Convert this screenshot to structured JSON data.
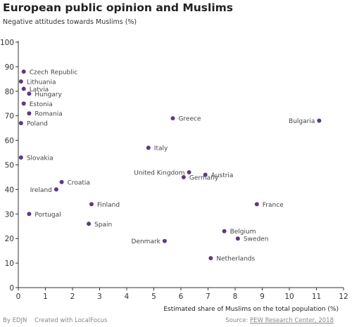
{
  "title": "European public opinion and Muslims",
  "subtitle": "Negative attitudes towards Muslims (%)",
  "footer": {
    "author": "By EDJN",
    "created_with": "Created with LocalFocus",
    "source_label": "Source:",
    "source_name": "PEW Research Center, 2018"
  },
  "colors": {
    "point": "#5b3a82",
    "axis": "#333333",
    "grid": "#e8e8e8"
  },
  "chart_data": {
    "type": "scatter",
    "title": "European public opinion and Muslims",
    "ylabel": "Negative attitudes towards Muslims (%)",
    "xlabel": "Estimated share of Muslims on the total population (%)",
    "xlim": [
      0,
      12
    ],
    "ylim": [
      0,
      100
    ],
    "xticks": [
      0,
      1,
      2,
      3,
      4,
      5,
      6,
      7,
      8,
      9,
      10,
      11,
      12
    ],
    "yticks": [
      0,
      10,
      20,
      30,
      40,
      50,
      60,
      70,
      80,
      90,
      100
    ],
    "grid": false,
    "points": [
      {
        "label": "Czech Republic",
        "x": 0.2,
        "y": 88,
        "side": "right"
      },
      {
        "label": "Lithuania",
        "x": 0.1,
        "y": 84,
        "side": "right"
      },
      {
        "label": "Latvia",
        "x": 0.2,
        "y": 81,
        "side": "right"
      },
      {
        "label": "Hungary",
        "x": 0.4,
        "y": 79,
        "side": "right"
      },
      {
        "label": "Estonia",
        "x": 0.2,
        "y": 75,
        "side": "right"
      },
      {
        "label": "Romania",
        "x": 0.4,
        "y": 71,
        "side": "right"
      },
      {
        "label": "Poland",
        "x": 0.1,
        "y": 67,
        "side": "right"
      },
      {
        "label": "Slovakia",
        "x": 0.1,
        "y": 53,
        "side": "right"
      },
      {
        "label": "Croatia",
        "x": 1.6,
        "y": 43,
        "side": "right"
      },
      {
        "label": "Ireland",
        "x": 1.4,
        "y": 40,
        "side": "left"
      },
      {
        "label": "Portugal",
        "x": 0.4,
        "y": 30,
        "side": "right"
      },
      {
        "label": "Finland",
        "x": 2.7,
        "y": 34,
        "side": "right"
      },
      {
        "label": "Spain",
        "x": 2.6,
        "y": 26,
        "side": "right"
      },
      {
        "label": "Greece",
        "x": 5.7,
        "y": 69,
        "side": "right"
      },
      {
        "label": "Italy",
        "x": 4.8,
        "y": 57,
        "side": "right"
      },
      {
        "label": "United Kingdom",
        "x": 6.3,
        "y": 47,
        "side": "left"
      },
      {
        "label": "Germany",
        "x": 6.1,
        "y": 45,
        "side": "right"
      },
      {
        "label": "Austria",
        "x": 6.9,
        "y": 46,
        "side": "right"
      },
      {
        "label": "Denmark",
        "x": 5.4,
        "y": 19,
        "side": "left"
      },
      {
        "label": "France",
        "x": 8.8,
        "y": 34,
        "side": "right"
      },
      {
        "label": "Belgium",
        "x": 7.6,
        "y": 23,
        "side": "right"
      },
      {
        "label": "Sweden",
        "x": 8.1,
        "y": 20,
        "side": "right"
      },
      {
        "label": "Netherlands",
        "x": 7.1,
        "y": 12,
        "side": "right"
      },
      {
        "label": "Bulgaria",
        "x": 11.1,
        "y": 68,
        "side": "left"
      }
    ]
  }
}
